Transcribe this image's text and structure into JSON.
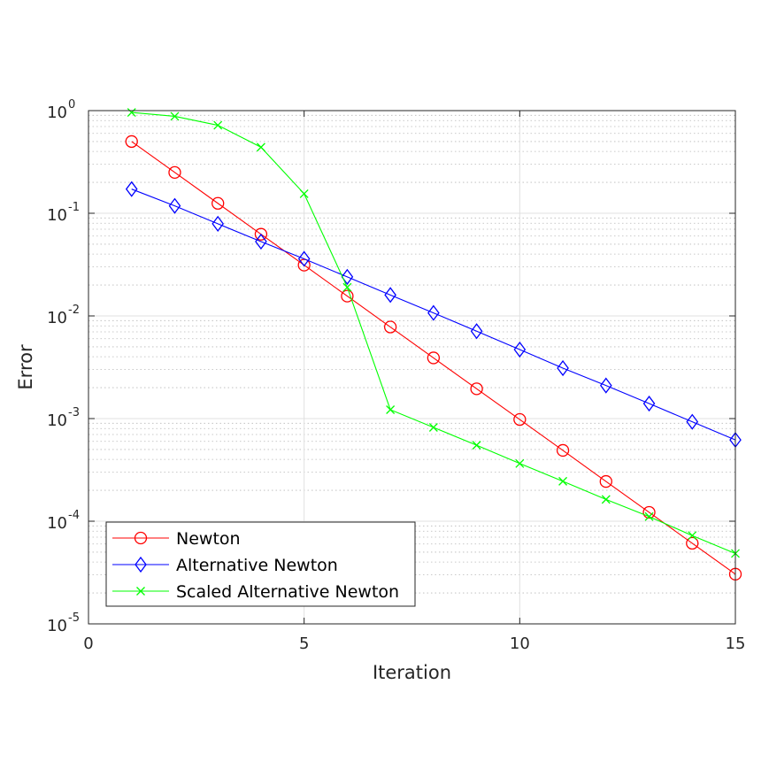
{
  "chart_data": {
    "type": "line",
    "xlabel": "Iteration",
    "ylabel": "Error",
    "xlim": [
      0,
      15
    ],
    "ylim": [
      1e-05,
      1
    ],
    "yscale": "log",
    "grid": true,
    "minor_grid": true,
    "legend_position": "bottom-left",
    "x_ticks": [
      {
        "value": 0,
        "label": "0"
      },
      {
        "value": 5,
        "label": "5"
      },
      {
        "value": 10,
        "label": "10"
      },
      {
        "value": 15,
        "label": "15"
      }
    ],
    "y_ticks": [
      {
        "value": 1,
        "base": "10",
        "exp": "0"
      },
      {
        "value": 0.1,
        "base": "10",
        "exp": "-1"
      },
      {
        "value": 0.01,
        "base": "10",
        "exp": "-2"
      },
      {
        "value": 0.001,
        "base": "10",
        "exp": "-3"
      },
      {
        "value": 0.0001,
        "base": "10",
        "exp": "-4"
      },
      {
        "value": 1e-05,
        "base": "10",
        "exp": "-5"
      }
    ],
    "series": [
      {
        "name": "Newton",
        "color": "#ff0000",
        "marker": "circle",
        "x": [
          1,
          2,
          3,
          4,
          5,
          6,
          7,
          8,
          9,
          10,
          11,
          12,
          13,
          14,
          15
        ],
        "y": [
          0.5,
          0.25,
          0.125,
          0.0625,
          0.03125,
          0.0156,
          0.0078,
          0.0039,
          0.00195,
          0.00098,
          0.00049,
          0.000244,
          0.000122,
          6.1e-05,
          3.05e-05
        ]
      },
      {
        "name": "Alternative Newton",
        "color": "#0000ff",
        "marker": "diamond",
        "x": [
          1,
          2,
          3,
          4,
          5,
          6,
          7,
          8,
          9,
          10,
          11,
          12,
          13,
          14,
          15
        ],
        "y": [
          0.172,
          0.118,
          0.079,
          0.053,
          0.036,
          0.024,
          0.016,
          0.0107,
          0.0071,
          0.0047,
          0.0031,
          0.0021,
          0.0014,
          0.00093,
          0.00062
        ]
      },
      {
        "name": "Scaled Alternative Newton",
        "color": "#00ff00",
        "marker": "x",
        "x": [
          1,
          2,
          3,
          4,
          5,
          6,
          7,
          8,
          9,
          10,
          11,
          12,
          13,
          14,
          15
        ],
        "y": [
          0.96,
          0.88,
          0.72,
          0.44,
          0.155,
          0.019,
          0.00122,
          0.00082,
          0.00055,
          0.000365,
          0.000245,
          0.000163,
          0.000111,
          7.25e-05,
          4.85e-05
        ]
      }
    ]
  }
}
